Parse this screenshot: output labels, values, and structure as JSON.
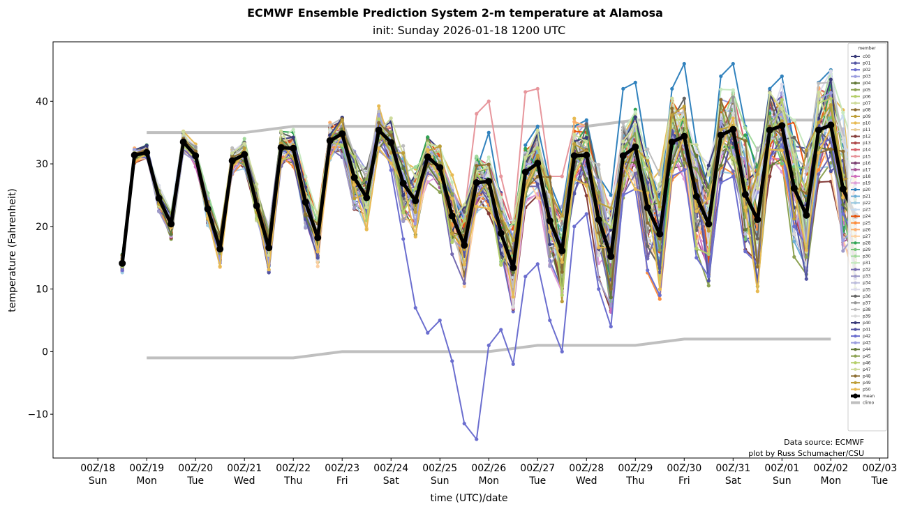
{
  "chart_data": {
    "type": "line",
    "title": "ECMWF Ensemble Prediction System 2-m temperature at Alamosa",
    "subtitle": "init: Sunday 2026-01-18 1200 UTC",
    "xlabel": "time (UTC)/date",
    "ylabel": "temperature (Fahrenheit)",
    "ylim": [
      -17,
      49.5
    ],
    "xlim_hours": [
      -22,
      344
    ],
    "time_step_hours": 6,
    "first_time_hours": 12,
    "yticks": [
      -10,
      0,
      10,
      20,
      30,
      40
    ],
    "xticks": [
      {
        "hours": 0,
        "line1": "00Z/18",
        "line2": "Sun"
      },
      {
        "hours": 24,
        "line1": "00Z/19",
        "line2": "Mon"
      },
      {
        "hours": 48,
        "line1": "00Z/20",
        "line2": "Tue"
      },
      {
        "hours": 72,
        "line1": "00Z/21",
        "line2": "Wed"
      },
      {
        "hours": 96,
        "line1": "00Z/22",
        "line2": "Thu"
      },
      {
        "hours": 120,
        "line1": "00Z/23",
        "line2": "Fri"
      },
      {
        "hours": 144,
        "line1": "00Z/24",
        "line2": "Sat"
      },
      {
        "hours": 168,
        "line1": "00Z/25",
        "line2": "Sun"
      },
      {
        "hours": 192,
        "line1": "00Z/26",
        "line2": "Mon"
      },
      {
        "hours": 216,
        "line1": "00Z/27",
        "line2": "Tue"
      },
      {
        "hours": 240,
        "line1": "00Z/28",
        "line2": "Wed"
      },
      {
        "hours": 264,
        "line1": "00Z/29",
        "line2": "Thu"
      },
      {
        "hours": 288,
        "line1": "00Z/30",
        "line2": "Fri"
      },
      {
        "hours": 312,
        "line1": "00Z/31",
        "line2": "Sat"
      },
      {
        "hours": 336,
        "line1": "00Z/01",
        "line2": "Sun"
      },
      {
        "hours": 360,
        "line1": "00Z/02",
        "line2": "Mon"
      },
      {
        "hours": 384,
        "line1": "00Z/03",
        "line2": "Tue"
      }
    ],
    "legend_title": "member",
    "legend_position": "right",
    "members": [
      "c00",
      "p01",
      "p02",
      "p03",
      "p04",
      "p05",
      "p06",
      "p07",
      "p08",
      "p09",
      "p10",
      "p11",
      "p12",
      "p13",
      "p14",
      "p15",
      "p16",
      "p17",
      "p18",
      "p19",
      "p20",
      "p21",
      "p22",
      "p23",
      "p24",
      "p25",
      "p26",
      "p27",
      "p28",
      "p29",
      "p30",
      "p31",
      "p32",
      "p33",
      "p34",
      "p35",
      "p36",
      "p37",
      "p38",
      "p39",
      "p40",
      "p41",
      "p42",
      "p43",
      "p44",
      "p45",
      "p46",
      "p47",
      "p48",
      "p49",
      "p50"
    ],
    "member_colors": [
      "#393b79",
      "#5254a3",
      "#6b6ecf",
      "#9c9ede",
      "#637939",
      "#8ca252",
      "#b5cf6b",
      "#cedb9c",
      "#8c6d31",
      "#bd9e39",
      "#e7ba52",
      "#e7cb94",
      "#843c39",
      "#ad494a",
      "#d6616b",
      "#e7969c",
      "#7b4173",
      "#a55194",
      "#ce6dbd",
      "#de9ed6",
      "#3182bd",
      "#6baed6",
      "#9ecae1",
      "#c6dbef",
      "#e6550d",
      "#fd8d3c",
      "#fdae6b",
      "#fdd0a2",
      "#31a354",
      "#74c476",
      "#a1d99b",
      "#c7e9c0",
      "#756bb1",
      "#9e9ac8",
      "#bcbddc",
      "#dadaeb",
      "#636363",
      "#969696",
      "#bdbdbd",
      "#d9d9d9",
      "#393b79",
      "#5254a3",
      "#6b6ecf",
      "#9c9ede",
      "#637939",
      "#8ca252",
      "#b5cf6b",
      "#cedb9c",
      "#8c6d31",
      "#bd9e39",
      "#e7ba52"
    ],
    "mean": {
      "label": "mean",
      "color": "#000000",
      "values": [
        14.1,
        31.4,
        31.8,
        24.5,
        20.4,
        33.5,
        31.3,
        22.8,
        16.4,
        30.5,
        31.5,
        23.3,
        16.6,
        32.6,
        32.5,
        23.9,
        18.2,
        33.7,
        34.8,
        27.8,
        24.6,
        35.4,
        33.4,
        26.9,
        24.1,
        31.1,
        29.4,
        21.7,
        17.0,
        27.0,
        27.2,
        18.9,
        13.4,
        28.7,
        30.1,
        20.9,
        16.1,
        31.3,
        31.4,
        21.1,
        15.2,
        31.3,
        32.7,
        23.0,
        18.8,
        33.5,
        34.4,
        24.8,
        20.4,
        34.6,
        35.5,
        25.1,
        21.1,
        35.4,
        36.1,
        26.1,
        21.8,
        35.4,
        36.2,
        26.0,
        21.7
      ]
    },
    "climo": {
      "label": "climo",
      "color": "#bfbfbf",
      "max": {
        "hours": [
          24,
          72,
          96,
          240,
          264,
          360
        ],
        "values": [
          35,
          35,
          36,
          36,
          37,
          37
        ]
      },
      "min": {
        "hours": [
          24,
          96,
          120,
          192,
          216,
          264,
          288,
          360
        ],
        "values": [
          -1,
          -1,
          0,
          0,
          1,
          1,
          2,
          2
        ]
      }
    },
    "spread_note": "member values = mean + perturbation; spread grows with lead time",
    "notable_members": {
      "p42": [
        13,
        31,
        31,
        24,
        20,
        33,
        31,
        22,
        15,
        30,
        31,
        23,
        15,
        32,
        32,
        23,
        16,
        33,
        34,
        26,
        22,
        36,
        29,
        18,
        7,
        3,
        5,
        -1.5,
        -11.5,
        -14,
        1,
        3.5,
        -2,
        12,
        14,
        5,
        0,
        20,
        22,
        10,
        4,
        25,
        26,
        13,
        9,
        28,
        29,
        15,
        12,
        27,
        28,
        16,
        14,
        31,
        33,
        20,
        17,
        33,
        34,
        22,
        18
      ],
      "p15": [
        14,
        31,
        32,
        24,
        21,
        33,
        31,
        23,
        17,
        30,
        32,
        24,
        17,
        33,
        33,
        24,
        18,
        34,
        35,
        28,
        25,
        36,
        34,
        28,
        26,
        32,
        31,
        26,
        22,
        38,
        40,
        28,
        20,
        41.5,
        42,
        28,
        28,
        36,
        36,
        27,
        23,
        35,
        35,
        27,
        23,
        36,
        36,
        28,
        24,
        36,
        36,
        28,
        26,
        37,
        36,
        28,
        25,
        36,
        38,
        28,
        24
      ],
      "p20": [
        14,
        31,
        32,
        25,
        21,
        33,
        31,
        23,
        17,
        30,
        31,
        23,
        17,
        32,
        32,
        24,
        18,
        34,
        35,
        28,
        25,
        35,
        34,
        28,
        25,
        32,
        31,
        25,
        21,
        29,
        35,
        24,
        18,
        33,
        36,
        27,
        22,
        36,
        37,
        28,
        25,
        42,
        43,
        31,
        24,
        42,
        46,
        33,
        26,
        44,
        46,
        36,
        28,
        42,
        44,
        33,
        25,
        43,
        45,
        33,
        27
      ]
    },
    "credits": [
      "Data source: ECMWF",
      "plot by Russ Schumacher/CSU"
    ]
  }
}
